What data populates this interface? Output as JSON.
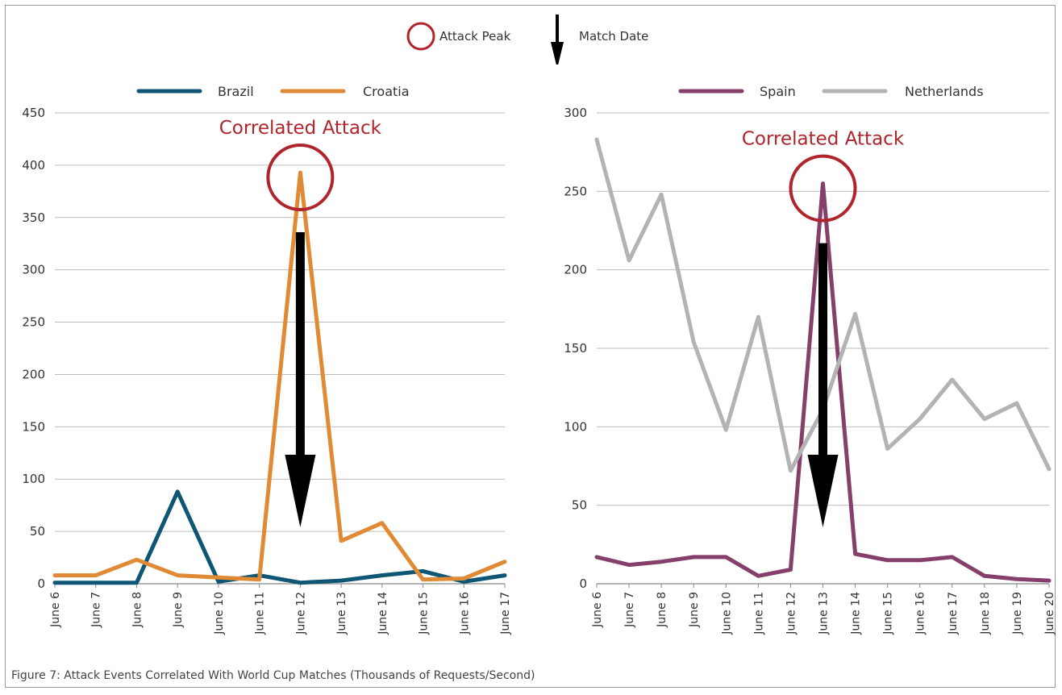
{
  "legend": {
    "attack_peak_label": "Attack Peak",
    "match_date_label": "Match Date",
    "attack_peak_color": "#b0242b",
    "arrow_color": "#000000"
  },
  "caption": "Figure 7: Attack Events Correlated With World Cup Matches (Thousands of Requests/Second)",
  "chart_data": [
    {
      "type": "line",
      "categories": [
        "June 6",
        "June 7",
        "June 8",
        "June 9",
        "June 10",
        "June 11",
        "June 12",
        "June 13",
        "June 14",
        "June 15",
        "June 16",
        "June 17"
      ],
      "series": [
        {
          "name": "Brazil",
          "color": "#0e5674",
          "values": [
            1,
            1,
            1,
            88,
            2,
            8,
            1,
            3,
            8,
            12,
            2,
            8
          ]
        },
        {
          "name": "Croatia",
          "color": "#e08a35",
          "values": [
            8,
            8,
            23,
            8,
            6,
            4,
            393,
            41,
            58,
            4,
            5,
            21
          ]
        }
      ],
      "ylim": [
        0,
        450
      ],
      "yticks": [
        0,
        50,
        100,
        150,
        200,
        250,
        300,
        350,
        400,
        450
      ],
      "grid": true,
      "legend_position": "top",
      "annotation": {
        "text": "Correlated Attack",
        "color": "#b0242b",
        "peak_category": "June 12",
        "peak_value": 393,
        "match_category": "June 12"
      }
    },
    {
      "type": "line",
      "categories": [
        "June 6",
        "June 7",
        "June 8",
        "June 9",
        "June 10",
        "June 11",
        "June 12",
        "June 13",
        "June 14",
        "June 15",
        "June 16",
        "June 17",
        "June 18",
        "June 19",
        "June 20"
      ],
      "series": [
        {
          "name": "Spain",
          "color": "#84406b",
          "values": [
            17,
            12,
            14,
            17,
            17,
            5,
            9,
            255,
            19,
            15,
            15,
            17,
            5,
            3,
            2
          ]
        },
        {
          "name": "Netherlands",
          "color": "#b3b3b5",
          "values": [
            283,
            206,
            248,
            154,
            98,
            170,
            72,
            111,
            172,
            86,
            105,
            130,
            105,
            115,
            73
          ]
        }
      ],
      "ylim": [
        0,
        300
      ],
      "yticks": [
        0,
        50,
        100,
        150,
        200,
        250,
        300
      ],
      "grid": true,
      "legend_position": "top",
      "annotation": {
        "text": "Correlated Attack",
        "color": "#b0242b",
        "peak_category": "June 13",
        "peak_value": 255,
        "match_category": "June 13"
      }
    }
  ]
}
